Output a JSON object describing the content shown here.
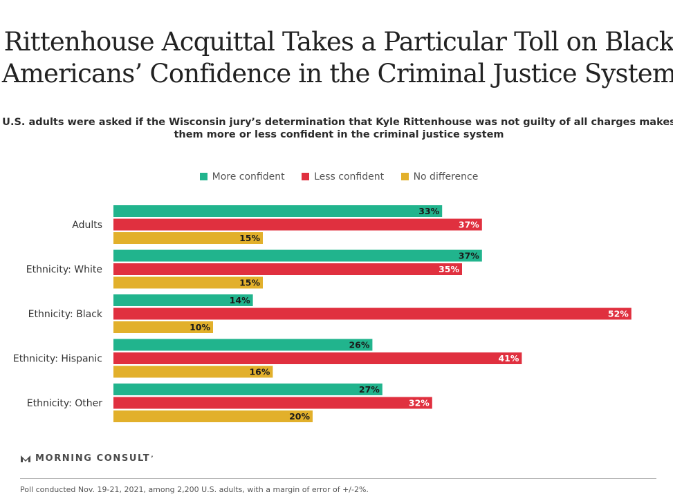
{
  "chart_data": {
    "type": "bar",
    "orientation": "horizontal",
    "title": "Rittenhouse Acquittal Takes a Particular Toll on Black Americans’ Confidence in the Criminal Justice System",
    "subtitle_line1": "U.S. adults were asked if the Wisconsin jury’s determination that Kyle Rittenhouse was not guilty of all charges makes",
    "subtitle_line2": "them more or less confident in the criminal justice system",
    "categories": [
      "Adults",
      "Ethnicity: White",
      "Ethnicity: Black",
      "Ethnicity: Hispanic",
      "Ethnicity: Other"
    ],
    "series": [
      {
        "name": "More confident",
        "color": "#21b48d",
        "values": [
          33,
          37,
          14,
          26,
          27
        ]
      },
      {
        "name": "Less confident",
        "color": "#e0303f",
        "values": [
          37,
          35,
          52,
          41,
          32
        ]
      },
      {
        "name": "No difference",
        "color": "#e2b02b",
        "values": [
          15,
          15,
          10,
          16,
          20
        ]
      }
    ],
    "value_suffix": "%",
    "xlim": [
      0,
      52
    ],
    "grid": false,
    "legend_position": "top-center"
  },
  "brand": {
    "name": "MORNING CONSULT",
    "mark": "’"
  },
  "footnote": "Poll conducted Nov. 19-21, 2021, among 2,200 U.S. adults, with a margin of error of +/-2%."
}
